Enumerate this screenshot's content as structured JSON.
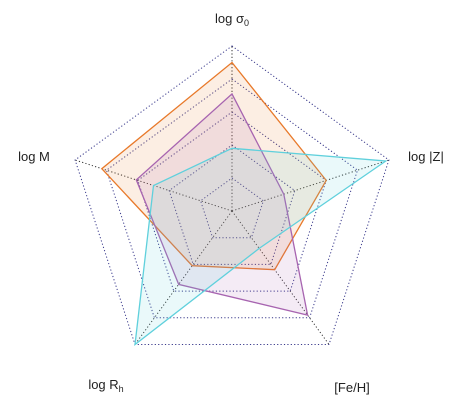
{
  "chart_data": {
    "type": "radar",
    "axes": [
      {
        "label": "log σ",
        "subscript": "0"
      },
      {
        "label": "log |Z|",
        "subscript": ""
      },
      {
        "label": "[Fe/H]",
        "subscript": ""
      },
      {
        "label": "log R",
        "subscript": "h"
      },
      {
        "label": "log M",
        "subscript": ""
      }
    ],
    "rlim": [
      0,
      1
    ],
    "grid_levels": [
      0.2,
      0.4,
      0.6,
      0.8,
      1.0
    ],
    "grid": true,
    "legend": false,
    "series": [
      {
        "color": "#e8792a",
        "values": [
          0.9,
          0.6,
          0.44,
          0.41,
          0.83
        ]
      },
      {
        "color": "#a764b0",
        "values": [
          0.71,
          0.33,
          0.78,
          0.55,
          0.61
        ]
      },
      {
        "color": "#5fd0dc",
        "values": [
          0.38,
          0.98,
          0.28,
          1.0,
          0.5
        ]
      }
    ]
  }
}
